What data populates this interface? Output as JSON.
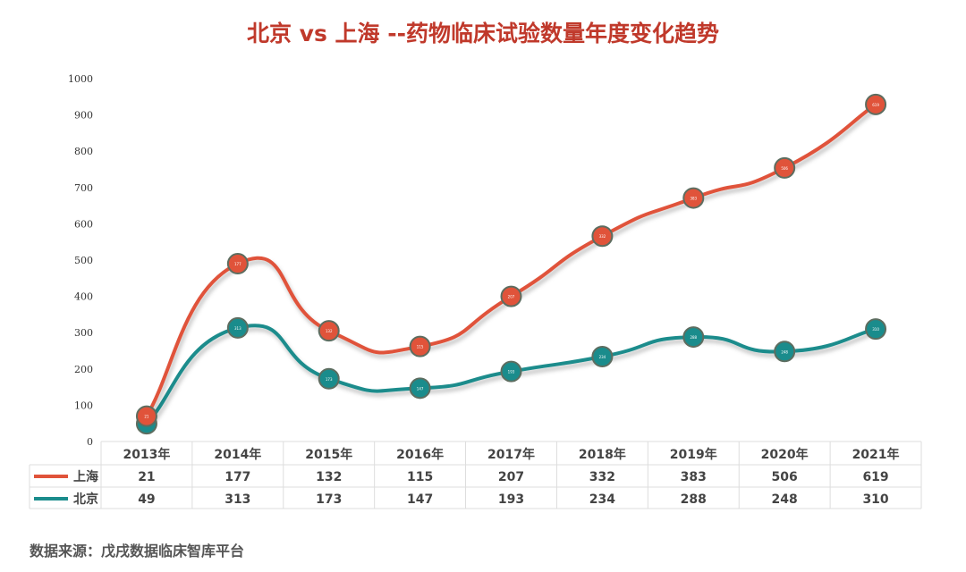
{
  "chart_data": {
    "type": "line",
    "stacked": true,
    "title": "北京 vs 上海 --药物临床试验数量年度变化趋势",
    "categories": [
      "2013年",
      "2014年",
      "2015年",
      "2016年",
      "2017年",
      "2018年",
      "2019年",
      "2020年",
      "2021年"
    ],
    "series": [
      {
        "name": "上海",
        "color": "#e0533a",
        "values": [
          21,
          177,
          132,
          115,
          207,
          332,
          383,
          506,
          619
        ]
      },
      {
        "name": "北京",
        "color": "#1a8c8c",
        "values": [
          49,
          313,
          173,
          147,
          193,
          234,
          288,
          248,
          310
        ]
      }
    ],
    "ylim": [
      0,
      1000
    ],
    "yticks": [
      0,
      100,
      200,
      300,
      400,
      500,
      600,
      700,
      800,
      900,
      1000
    ],
    "data_table": true,
    "legend": "in data table",
    "grid": false
  },
  "source": "数据来源：戊戌数据临床智库平台"
}
